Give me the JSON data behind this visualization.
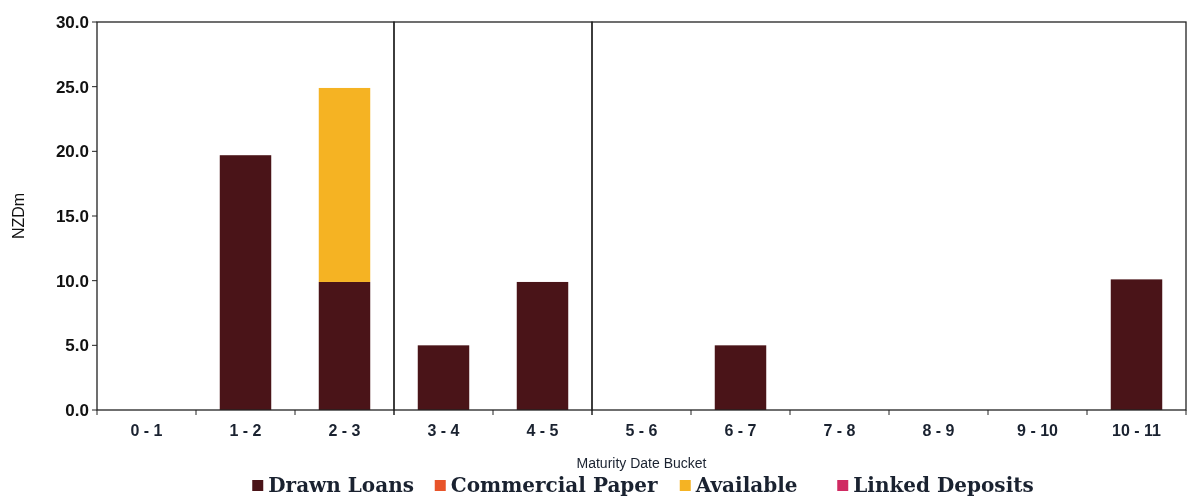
{
  "chart_data": [
    {
      "type": "bar",
      "stacked": true,
      "ylabel": "NZDm",
      "categories": [
        "0 - 1",
        "1 - 2",
        "2 - 3"
      ],
      "series": [
        {
          "name": "Drawn Loans",
          "color": "#4a1418",
          "values": [
            0,
            19.7,
            9.9
          ]
        },
        {
          "name": "Commercial Paper",
          "color": "#e8542a",
          "values": [
            0,
            0,
            0
          ]
        },
        {
          "name": "Available",
          "color": "#f5b323",
          "values": [
            0,
            0,
            15.0
          ]
        },
        {
          "name": "Linked Deposits",
          "color": "#d02a62",
          "values": [
            0,
            0,
            0
          ]
        }
      ],
      "ylim": [
        0,
        30
      ],
      "yticks": [
        {
          "value": 0,
          "label": "0.0"
        },
        {
          "value": 5,
          "label": "5.0"
        },
        {
          "value": 10,
          "label": "10.0"
        },
        {
          "value": 15,
          "label": "15.0"
        },
        {
          "value": 20,
          "label": "20.0"
        },
        {
          "value": 25,
          "label": "25.0"
        },
        {
          "value": 30,
          "label": "30.0"
        }
      ],
      "legend": "bottom"
    },
    {
      "type": "bar",
      "stacked": true,
      "categories": [
        "3 - 4",
        "4 - 5"
      ],
      "series": [
        {
          "color": "#4a1418",
          "values": [
            5.0,
            9.9
          ]
        },
        {
          "color": "#e8542a",
          "values": [
            0,
            0
          ]
        },
        {
          "color": "#f5b323",
          "values": [
            0,
            0
          ]
        },
        {
          "color": "#d02a62",
          "values": [
            0,
            0
          ]
        }
      ],
      "ylim": [
        0,
        30
      ],
      "tick_labels": "x"
    },
    {
      "type": "bar",
      "stacked": true,
      "xlabel": "Maturity Date Bucket",
      "categories": [
        "5 - 6",
        "6 - 7",
        "7 - 8",
        "8 - 9",
        "9 - 10",
        "10 - 11"
      ],
      "series": [
        {
          "color": "#4a1418",
          "values": [
            0,
            5.0,
            0,
            0,
            0,
            10.1
          ]
        },
        {
          "color": "#e8542a",
          "values": [
            0,
            0,
            0,
            0,
            0,
            0
          ]
        },
        {
          "color": "#f5b323",
          "values": [
            0,
            0,
            0,
            0,
            0,
            0
          ]
        },
        {
          "color": "#d02a62",
          "values": [
            0,
            0,
            0,
            0,
            0,
            0
          ]
        }
      ],
      "ylim": [
        0,
        30
      ],
      "tick_labels": "x"
    }
  ]
}
